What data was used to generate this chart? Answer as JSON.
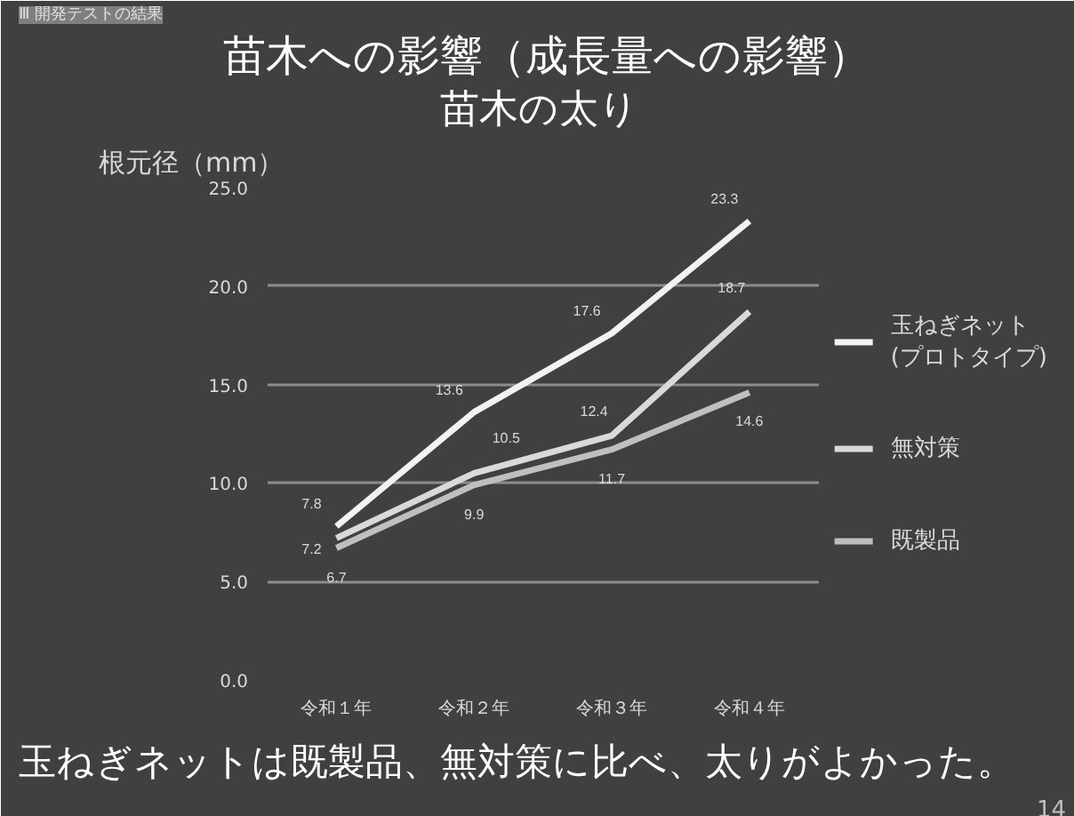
{
  "chart_data": {
    "type": "line",
    "title": "苗木への影響（成長量への影響）",
    "subtitle": "苗木の太り",
    "ylabel": "根元径（mm）",
    "categories": [
      "令和１年",
      "令和２年",
      "令和３年",
      "令和４年"
    ],
    "series": [
      {
        "name": "玉ねぎネット\n(プロトタイプ)",
        "color": "#f2f2f2",
        "values": [
          7.8,
          13.6,
          17.6,
          23.3
        ]
      },
      {
        "name": "無対策",
        "color": "#d9d9d9",
        "values": [
          7.2,
          10.5,
          12.4,
          18.7
        ]
      },
      {
        "name": "既製品",
        "color": "#bfbfbf",
        "values": [
          6.7,
          9.9,
          11.7,
          14.6
        ]
      }
    ],
    "ylim": [
      0,
      25
    ],
    "yticks": [
      "0.0",
      "5.0",
      "10.0",
      "15.0",
      "20.0",
      "25.0"
    ],
    "grid": "y",
    "legend": "right",
    "data_labels": true,
    "marker": "none",
    "line_style": "solid",
    "annotations": [
      "Ⅲ 開発テストの結果",
      "玉ねぎネットは既製品、無対策に比べ、太りがよかった。",
      "14"
    ]
  }
}
